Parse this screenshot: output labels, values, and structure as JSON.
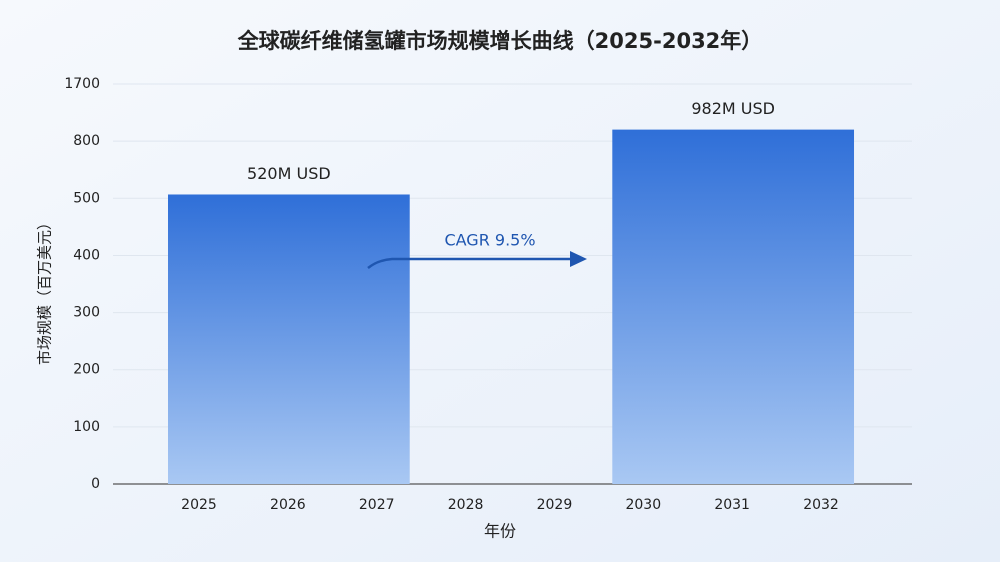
{
  "chart_data": {
    "type": "bar",
    "title": "全球碳纤维储氢罐市场规模增长曲线（2025-2032年）",
    "x_label": "年份",
    "y_label": "市场规模（百万美元）",
    "categories": [
      "2025",
      "2026",
      "2027",
      "2028",
      "2029",
      "2030",
      "2031",
      "2032"
    ],
    "bars": [
      {
        "from": "2025",
        "to": "2027",
        "value": 520,
        "value_label": "520M USD"
      },
      {
        "from": "2030",
        "to": "2032",
        "value": 982,
        "value_label": "982M USD"
      }
    ],
    "color": "#2f6fd8",
    "yticks": [
      0,
      100,
      200,
      300,
      400,
      500,
      800,
      1700
    ],
    "grid": true,
    "annotation": {
      "text": "CAGR 9.5%",
      "color": "#1f56b0"
    }
  }
}
